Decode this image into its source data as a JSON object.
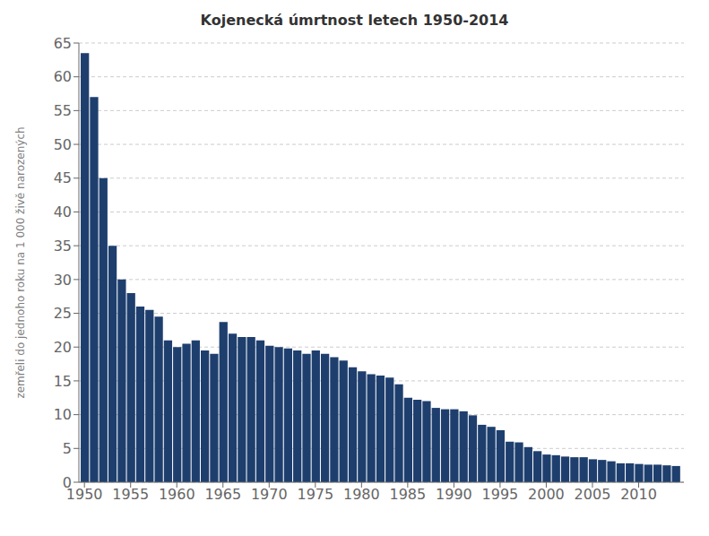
{
  "chart_data": {
    "type": "bar",
    "title": "Kojenecká úmrtnost letech 1950-2014",
    "ylabel": "zemřeli do jednoho roku na 1 000 živě narozených",
    "color": "#1e3f6e",
    "x": [
      1950,
      1951,
      1952,
      1953,
      1954,
      1955,
      1956,
      1957,
      1958,
      1959,
      1960,
      1961,
      1962,
      1963,
      1964,
      1965,
      1966,
      1967,
      1968,
      1969,
      1970,
      1971,
      1972,
      1973,
      1974,
      1975,
      1976,
      1977,
      1978,
      1979,
      1980,
      1981,
      1982,
      1983,
      1984,
      1985,
      1986,
      1987,
      1988,
      1989,
      1990,
      1991,
      1992,
      1993,
      1994,
      1995,
      1996,
      1997,
      1998,
      1999,
      2000,
      2001,
      2002,
      2003,
      2004,
      2005,
      2006,
      2007,
      2008,
      2009,
      2010,
      2011,
      2012,
      2013,
      2014
    ],
    "values": [
      63.5,
      57.0,
      45.0,
      35.0,
      30.0,
      28.0,
      26.0,
      25.5,
      24.5,
      21.0,
      20.0,
      20.5,
      21.0,
      19.5,
      19.0,
      23.7,
      22.0,
      21.5,
      21.5,
      21.0,
      20.2,
      20.0,
      19.8,
      19.5,
      19.0,
      19.5,
      19.0,
      18.5,
      18.0,
      17.0,
      16.4,
      16.0,
      15.8,
      15.5,
      14.5,
      12.5,
      12.2,
      12.0,
      11.0,
      10.8,
      10.8,
      10.5,
      9.9,
      8.5,
      8.2,
      7.7,
      6.0,
      5.9,
      5.2,
      4.6,
      4.1,
      4.0,
      3.8,
      3.7,
      3.7,
      3.4,
      3.3,
      3.1,
      2.8,
      2.8,
      2.7,
      2.6,
      2.6,
      2.5,
      2.4
    ],
    "xlim": [
      1949.4,
      2014.9
    ],
    "xticks": [
      1950,
      1955,
      1960,
      1965,
      1970,
      1975,
      1980,
      1985,
      1990,
      1995,
      2000,
      2005,
      2010
    ],
    "ylim": [
      0,
      65
    ],
    "yticks": [
      0,
      5,
      10,
      15,
      20,
      25,
      30,
      35,
      40,
      45,
      50,
      55,
      60,
      65
    ],
    "grid": true
  }
}
